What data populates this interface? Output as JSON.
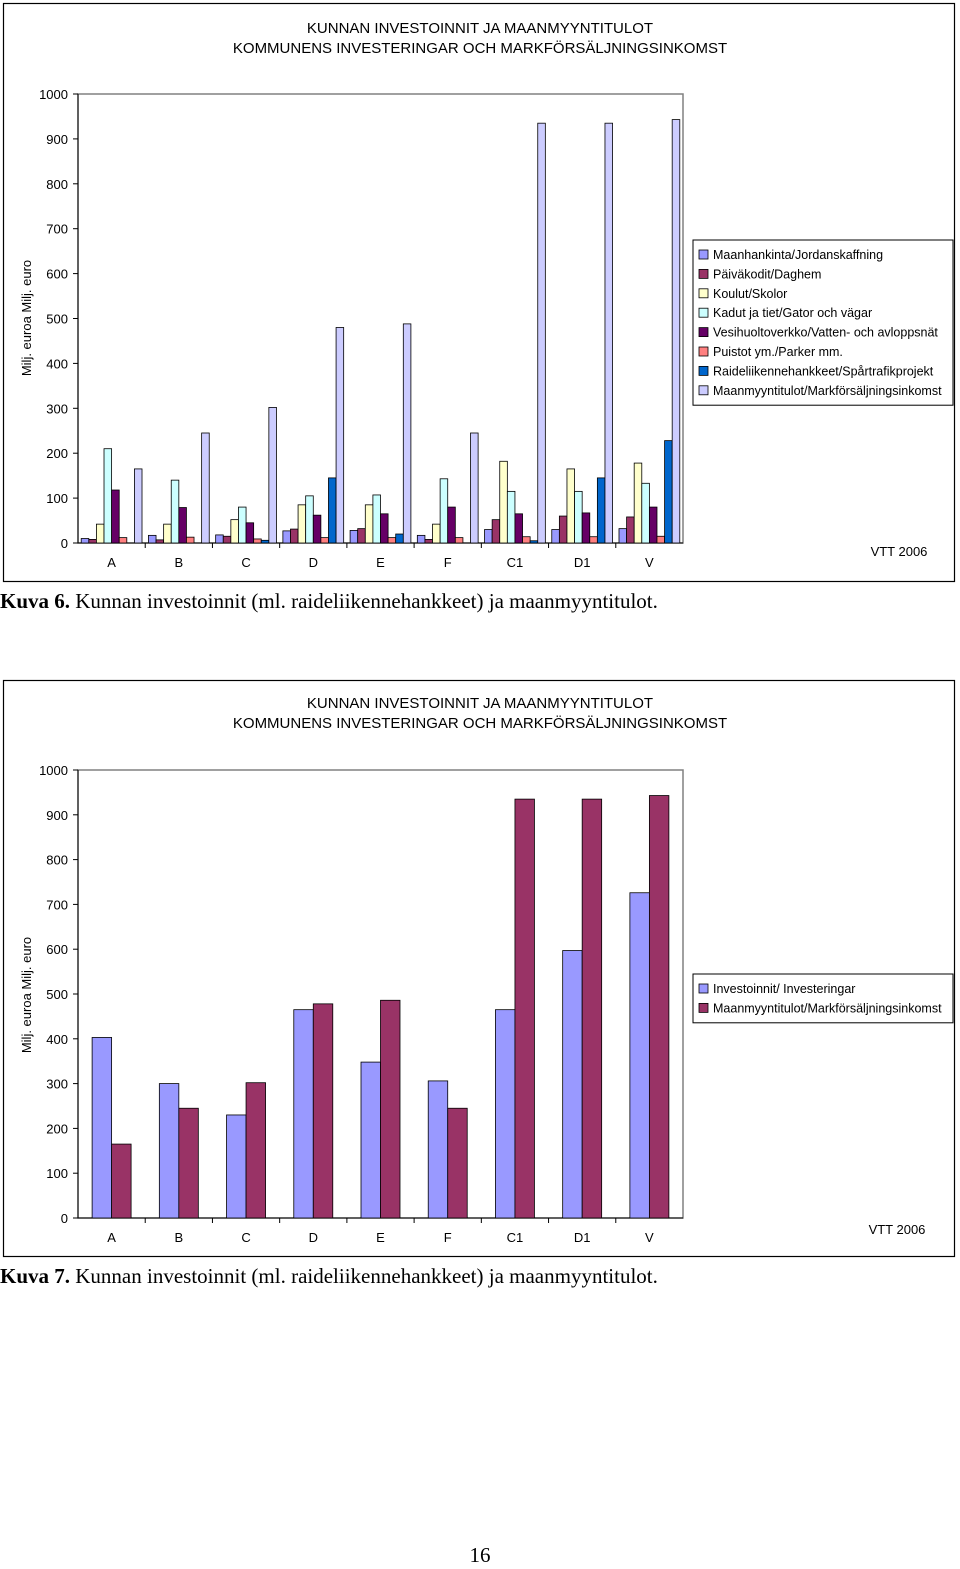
{
  "figures": [
    {
      "caption_label": "Kuva 6.",
      "caption_text": " Kunnan investoinnit (ml. raideliikennehankkeet) ja maanmyyntitulot."
    },
    {
      "caption_label": "Kuva 7.",
      "caption_text": " Kunnan investoinnit (ml. raideliikennehankkeet) ja maanmyyntitulot."
    }
  ],
  "page_number": "16",
  "chart_data": [
    {
      "type": "bar",
      "title": "KUNNAN INVESTOINNIT JA MAANMYYNTITULOT",
      "subtitle": "KOMMUNENS INVESTERINGAR OCH MARKFÖRSÄLJNINGSINKOMST",
      "ylabel": "Milj. euroa Milj. euro",
      "xlabel": "",
      "ylim": [
        0,
        1000
      ],
      "yticks": [
        0,
        100,
        200,
        300,
        400,
        500,
        600,
        700,
        800,
        900,
        1000
      ],
      "grid": false,
      "legend_position": "right",
      "source_note": "VTT 2006",
      "categories": [
        "A",
        "B",
        "C",
        "D",
        "E",
        "F",
        "C1",
        "D1",
        "V"
      ],
      "series": [
        {
          "name": "Maanhankinta/Jordanskaffning",
          "color": "#9999ff",
          "values": [
            10,
            17,
            18,
            27,
            28,
            17,
            30,
            30,
            32
          ]
        },
        {
          "name": "Päiväkodit/Daghem",
          "color": "#993366",
          "values": [
            8,
            7,
            15,
            31,
            32,
            8,
            52,
            60,
            58
          ]
        },
        {
          "name": "Koulut/Skolor",
          "color": "#ffffcc",
          "values": [
            42,
            42,
            52,
            85,
            85,
            42,
            182,
            165,
            178
          ]
        },
        {
          "name": "Kadut ja tiet/Gator och vägar",
          "color": "#ccffff",
          "values": [
            210,
            140,
            80,
            105,
            107,
            143,
            115,
            115,
            133
          ]
        },
        {
          "name": "Vesihuoltoverkko/Vatten- och avloppsnät",
          "color": "#660066",
          "values": [
            118,
            79,
            45,
            62,
            65,
            80,
            65,
            67,
            80
          ]
        },
        {
          "name": "Puistot ym./Parker mm.",
          "color": "#ff8080",
          "values": [
            12,
            13,
            9,
            12,
            12,
            12,
            14,
            14,
            15
          ]
        },
        {
          "name": "Raideliikennehankkeet/Spårtrafikprojekt",
          "color": "#0066cc",
          "values": [
            0,
            0,
            6,
            145,
            20,
            0,
            5,
            145,
            228
          ]
        },
        {
          "name": "Maanmyyntitulot/Markförsäljningsinkomst",
          "color": "#ccccff",
          "values": [
            165,
            245,
            302,
            480,
            488,
            245,
            935,
            935,
            943
          ]
        }
      ]
    },
    {
      "type": "bar",
      "title": "KUNNAN INVESTOINNIT JA MAANMYYNTITULOT",
      "subtitle": "KOMMUNENS INVESTERINGAR OCH MARKFÖRSÄLJNINGSINKOMST",
      "ylabel": "Milj. euroa Milj. euro",
      "xlabel": "",
      "ylim": [
        0,
        1000
      ],
      "yticks": [
        0,
        100,
        200,
        300,
        400,
        500,
        600,
        700,
        800,
        900,
        1000
      ],
      "grid": false,
      "legend_position": "right",
      "source_note": "VTT 2006",
      "categories": [
        "A",
        "B",
        "C",
        "D",
        "E",
        "F",
        "C1",
        "D1",
        "V"
      ],
      "series": [
        {
          "name": "Investoinnit/ Investeringar",
          "color": "#9999ff",
          "values": [
            403,
            300,
            230,
            465,
            348,
            306,
            465,
            597,
            726
          ]
        },
        {
          "name": "Maanmyyntitulot/Markförsäljningsinkomst",
          "color": "#993366",
          "values": [
            165,
            245,
            302,
            478,
            486,
            245,
            935,
            935,
            943
          ]
        }
      ]
    }
  ]
}
